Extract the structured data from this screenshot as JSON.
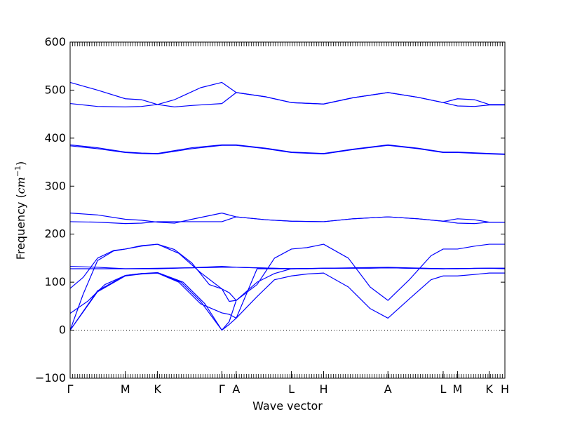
{
  "chart_data": {
    "type": "line",
    "xlabel": "Wave vector",
    "ylabel": {
      "prefix": "Frequency (",
      "unit": "cm",
      "exponent": "−1",
      "suffix": ")"
    },
    "ylim": [
      -100,
      600
    ],
    "yticks": [
      -100,
      0,
      100,
      200,
      300,
      400,
      500,
      600
    ],
    "xlim": [
      0,
      1
    ],
    "kpoints": [
      {
        "label": "Γ",
        "x": 0.0
      },
      {
        "label": "M",
        "x": 0.127
      },
      {
        "label": "K",
        "x": 0.201
      },
      {
        "label": "Γ",
        "x": 0.349
      },
      {
        "label": "A",
        "x": 0.382
      },
      {
        "label": "L",
        "x": 0.509
      },
      {
        "label": "H",
        "x": 0.583
      },
      {
        "label": "A",
        "x": 0.731
      },
      {
        "label": "L",
        "x": 0.858
      },
      {
        "label": "M",
        "x": 0.891
      },
      {
        "label": "K",
        "x": 0.964
      },
      {
        "label": "H",
        "x": 1.0
      }
    ],
    "zero_line": {
      "y": 0,
      "style": "dotted"
    },
    "grid": false,
    "line_color": "#0000ff",
    "series": [
      {
        "points": [
          [
            0.0,
            0
          ],
          [
            0.063,
            80
          ],
          [
            0.127,
            113
          ],
          [
            0.164,
            117
          ],
          [
            0.201,
            119
          ],
          [
            0.255,
            100
          ],
          [
            0.3,
            60
          ],
          [
            0.349,
            0
          ],
          [
            0.366,
            12
          ],
          [
            0.382,
            25
          ],
          [
            0.43,
            70
          ],
          [
            0.47,
            105
          ],
          [
            0.509,
            113
          ],
          [
            0.545,
            117
          ],
          [
            0.583,
            119
          ],
          [
            0.64,
            90
          ],
          [
            0.69,
            45
          ],
          [
            0.731,
            25
          ],
          [
            0.78,
            65
          ],
          [
            0.83,
            105
          ],
          [
            0.858,
            113
          ],
          [
            0.891,
            113
          ],
          [
            0.93,
            116
          ],
          [
            0.964,
            119
          ],
          [
            1.0,
            119
          ]
        ]
      },
      {
        "points": [
          [
            0.0,
            0
          ],
          [
            0.063,
            82
          ],
          [
            0.127,
            114
          ],
          [
            0.164,
            118
          ],
          [
            0.201,
            120
          ],
          [
            0.26,
            100
          ],
          [
            0.31,
            55
          ],
          [
            0.349,
            0
          ],
          [
            0.366,
            18
          ],
          [
            0.382,
            62
          ],
          [
            0.43,
            100
          ],
          [
            0.47,
            118
          ],
          [
            0.509,
            128
          ],
          [
            0.545,
            128
          ],
          [
            0.583,
            129
          ],
          [
            0.64,
            129
          ],
          [
            0.69,
            129
          ],
          [
            0.731,
            130
          ],
          [
            0.78,
            129
          ],
          [
            0.83,
            128
          ],
          [
            0.858,
            128
          ],
          [
            0.891,
            128
          ],
          [
            0.93,
            129
          ],
          [
            0.964,
            129
          ],
          [
            1.0,
            129
          ]
        ]
      },
      {
        "points": [
          [
            0.0,
            0
          ],
          [
            0.03,
            75
          ],
          [
            0.063,
            145
          ],
          [
            0.1,
            165
          ],
          [
            0.127,
            169
          ],
          [
            0.164,
            175
          ],
          [
            0.201,
            179
          ],
          [
            0.24,
            168
          ],
          [
            0.28,
            140
          ],
          [
            0.32,
            95
          ],
          [
            0.349,
            86
          ],
          [
            0.366,
            78
          ],
          [
            0.382,
            62
          ],
          [
            0.43,
            95
          ],
          [
            0.47,
            150
          ],
          [
            0.509,
            169
          ],
          [
            0.545,
            172
          ],
          [
            0.583,
            179
          ],
          [
            0.64,
            150
          ],
          [
            0.69,
            90
          ],
          [
            0.731,
            62
          ],
          [
            0.78,
            105
          ],
          [
            0.83,
            155
          ],
          [
            0.858,
            169
          ],
          [
            0.891,
            169
          ],
          [
            0.93,
            175
          ],
          [
            0.964,
            179
          ],
          [
            1.0,
            179
          ]
        ]
      },
      {
        "points": [
          [
            0.0,
            35
          ],
          [
            0.04,
            60
          ],
          [
            0.08,
            95
          ],
          [
            0.127,
            114
          ],
          [
            0.164,
            118
          ],
          [
            0.201,
            119
          ],
          [
            0.25,
            100
          ],
          [
            0.3,
            55
          ],
          [
            0.349,
            36
          ],
          [
            0.366,
            33
          ],
          [
            0.382,
            25
          ],
          [
            0.43,
            128
          ],
          [
            0.509,
            128
          ],
          [
            0.583,
            129
          ],
          [
            0.731,
            130
          ],
          [
            0.858,
            128
          ],
          [
            0.964,
            129
          ],
          [
            1.0,
            129
          ]
        ]
      },
      {
        "points": [
          [
            0.0,
            87
          ],
          [
            0.03,
            110
          ],
          [
            0.063,
            150
          ],
          [
            0.1,
            166
          ],
          [
            0.127,
            169
          ],
          [
            0.164,
            176
          ],
          [
            0.201,
            179
          ],
          [
            0.25,
            160
          ],
          [
            0.3,
            120
          ],
          [
            0.349,
            86
          ],
          [
            0.366,
            60
          ],
          [
            0.382,
            62
          ]
        ]
      },
      {
        "points": [
          [
            0.0,
            128
          ],
          [
            0.063,
            128
          ],
          [
            0.127,
            128
          ],
          [
            0.201,
            129
          ],
          [
            0.28,
            130
          ],
          [
            0.349,
            131
          ],
          [
            0.382,
            131
          ],
          [
            0.509,
            128
          ],
          [
            0.583,
            129
          ],
          [
            0.731,
            130
          ],
          [
            0.858,
            128
          ],
          [
            0.964,
            129
          ],
          [
            1.0,
            129
          ]
        ]
      },
      {
        "points": [
          [
            0.0,
            133
          ],
          [
            0.063,
            131
          ],
          [
            0.127,
            128
          ],
          [
            0.201,
            128
          ],
          [
            0.28,
            130
          ],
          [
            0.349,
            133
          ],
          [
            0.382,
            131
          ],
          [
            0.509,
            128
          ],
          [
            0.583,
            129
          ],
          [
            0.731,
            131
          ],
          [
            0.858,
            128
          ],
          [
            0.964,
            129
          ],
          [
            1.0,
            128
          ]
        ]
      },
      {
        "points": [
          [
            0.0,
            226
          ],
          [
            0.063,
            225
          ],
          [
            0.127,
            222
          ],
          [
            0.164,
            223
          ],
          [
            0.201,
            226
          ],
          [
            0.255,
            226
          ],
          [
            0.3,
            226
          ],
          [
            0.349,
            226
          ],
          [
            0.382,
            236
          ],
          [
            0.45,
            230
          ],
          [
            0.509,
            227
          ],
          [
            0.583,
            226
          ],
          [
            0.65,
            232
          ],
          [
            0.731,
            236
          ],
          [
            0.8,
            232
          ],
          [
            0.858,
            227
          ],
          [
            0.891,
            223
          ],
          [
            0.93,
            222
          ],
          [
            0.964,
            225
          ],
          [
            1.0,
            225
          ]
        ]
      },
      {
        "points": [
          [
            0.0,
            244
          ],
          [
            0.063,
            240
          ],
          [
            0.127,
            231
          ],
          [
            0.164,
            229
          ],
          [
            0.201,
            225
          ],
          [
            0.24,
            223
          ],
          [
            0.28,
            231
          ],
          [
            0.349,
            244
          ],
          [
            0.382,
            236
          ],
          [
            0.45,
            230
          ],
          [
            0.509,
            227
          ],
          [
            0.583,
            226
          ],
          [
            0.65,
            232
          ],
          [
            0.731,
            236
          ],
          [
            0.8,
            232
          ],
          [
            0.858,
            227
          ],
          [
            0.891,
            232
          ],
          [
            0.93,
            230
          ],
          [
            0.964,
            225
          ],
          [
            1.0,
            225
          ]
        ]
      },
      {
        "points": [
          [
            0.0,
            384
          ],
          [
            0.063,
            378
          ],
          [
            0.127,
            370
          ],
          [
            0.164,
            368
          ],
          [
            0.201,
            367
          ],
          [
            0.28,
            378
          ],
          [
            0.349,
            385
          ],
          [
            0.382,
            385
          ],
          [
            0.45,
            378
          ],
          [
            0.509,
            370
          ],
          [
            0.583,
            367
          ],
          [
            0.65,
            376
          ],
          [
            0.731,
            385
          ],
          [
            0.8,
            378
          ],
          [
            0.858,
            370
          ],
          [
            0.891,
            370
          ],
          [
            0.964,
            367
          ],
          [
            1.0,
            366
          ]
        ]
      },
      {
        "points": [
          [
            0.0,
            386
          ],
          [
            0.063,
            380
          ],
          [
            0.127,
            371
          ],
          [
            0.164,
            369
          ],
          [
            0.201,
            368
          ],
          [
            0.28,
            380
          ],
          [
            0.349,
            386
          ],
          [
            0.382,
            386
          ],
          [
            0.45,
            379
          ],
          [
            0.509,
            371
          ],
          [
            0.583,
            368
          ],
          [
            0.65,
            377
          ],
          [
            0.731,
            386
          ],
          [
            0.8,
            379
          ],
          [
            0.858,
            371
          ],
          [
            0.891,
            371
          ],
          [
            0.964,
            368
          ],
          [
            1.0,
            367
          ]
        ]
      },
      {
        "points": [
          [
            0.0,
            472
          ],
          [
            0.063,
            466
          ],
          [
            0.127,
            465
          ],
          [
            0.164,
            466
          ],
          [
            0.201,
            470
          ],
          [
            0.24,
            465
          ],
          [
            0.28,
            468
          ],
          [
            0.349,
            472
          ],
          [
            0.382,
            495
          ],
          [
            0.45,
            486
          ],
          [
            0.509,
            474
          ],
          [
            0.583,
            471
          ],
          [
            0.65,
            484
          ],
          [
            0.731,
            495
          ],
          [
            0.8,
            485
          ],
          [
            0.858,
            474
          ],
          [
            0.891,
            467
          ],
          [
            0.93,
            466
          ],
          [
            0.964,
            469
          ],
          [
            1.0,
            469
          ]
        ]
      },
      {
        "points": [
          [
            0.0,
            516
          ],
          [
            0.063,
            500
          ],
          [
            0.127,
            482
          ],
          [
            0.164,
            480
          ],
          [
            0.201,
            470
          ],
          [
            0.24,
            480
          ],
          [
            0.3,
            505
          ],
          [
            0.349,
            516
          ],
          [
            0.382,
            495
          ],
          [
            0.45,
            486
          ],
          [
            0.509,
            474
          ],
          [
            0.583,
            471
          ],
          [
            0.65,
            484
          ],
          [
            0.731,
            495
          ],
          [
            0.8,
            485
          ],
          [
            0.858,
            474
          ],
          [
            0.891,
            482
          ],
          [
            0.93,
            480
          ],
          [
            0.964,
            470
          ],
          [
            1.0,
            470
          ]
        ]
      }
    ]
  }
}
